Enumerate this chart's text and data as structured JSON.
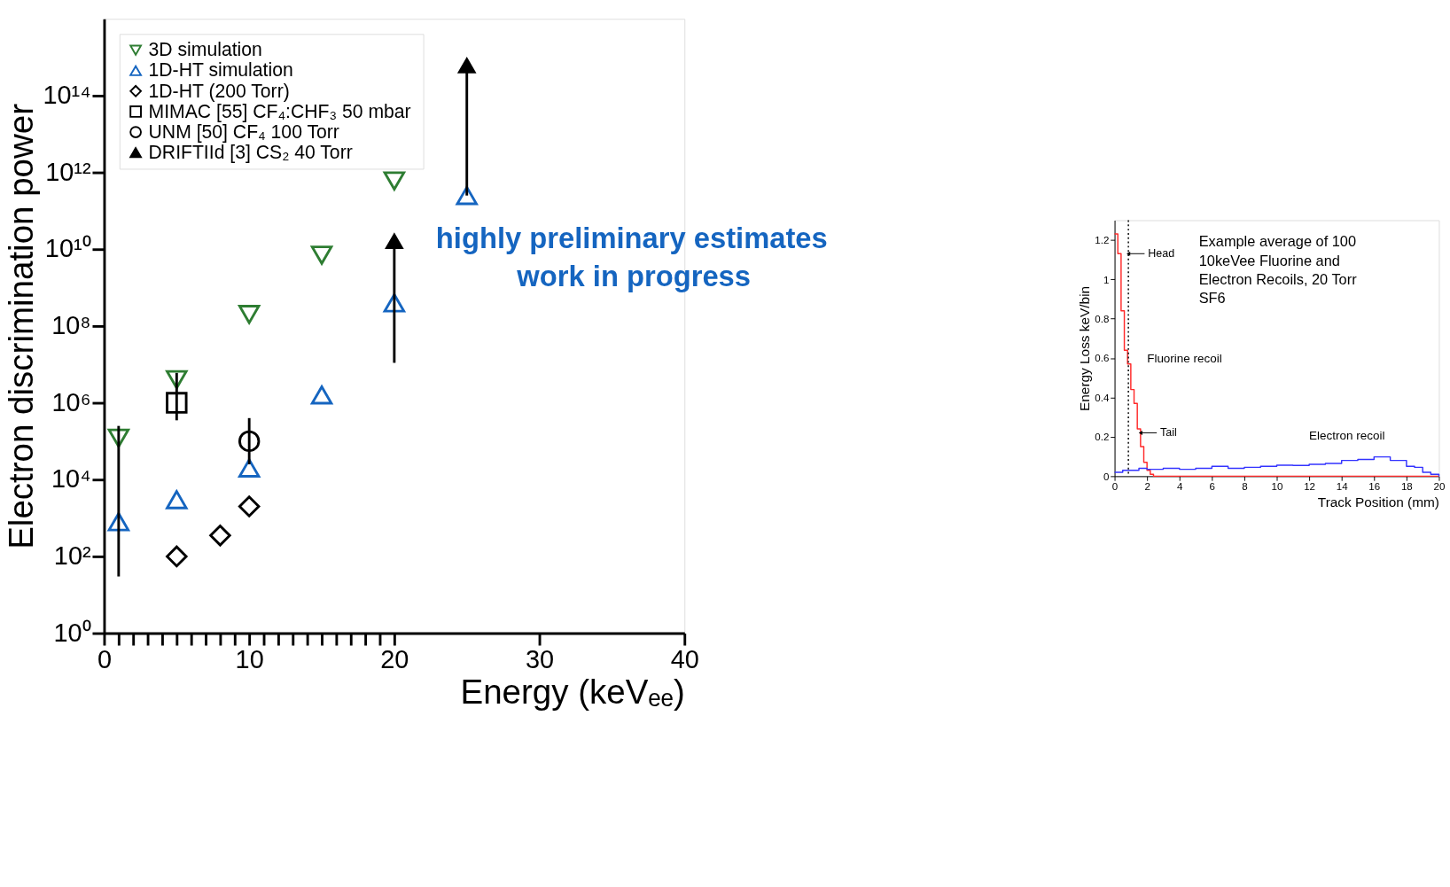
{
  "chart_data": [
    {
      "type": "scatter",
      "xlabel": "Energy (keVₑₑ)",
      "ylabel": "Electron discrimination power",
      "xlim": [
        0,
        40
      ],
      "xticks": [
        0,
        {
          "value": 1,
          "label": null
        },
        {
          "value": 2,
          "label": null
        },
        {
          "value": 3,
          "label": null
        },
        {
          "value": 4,
          "label": null
        },
        {
          "value": 5,
          "label": null
        },
        {
          "value": 6,
          "label": null
        },
        {
          "value": 7,
          "label": null
        },
        {
          "value": 8,
          "label": null
        },
        {
          "value": 9,
          "label": null
        },
        10,
        {
          "value": 11,
          "label": null
        },
        {
          "value": 12,
          "label": null
        },
        {
          "value": 13,
          "label": null
        },
        {
          "value": 14,
          "label": null
        },
        {
          "value": 15,
          "label": null
        },
        {
          "value": 16,
          "label": null
        },
        {
          "value": 17,
          "label": null
        },
        {
          "value": 18,
          "label": null
        },
        {
          "value": 19,
          "label": null
        },
        20,
        30,
        40
      ],
      "ylim": [
        1,
        1e+16
      ],
      "yticks": [
        {
          "value": 1,
          "label": "10⁰"
        },
        {
          "value": 100,
          "label": "10²"
        },
        {
          "value": 10000,
          "label": "10⁴"
        },
        {
          "value": 1000000,
          "label": "10⁶"
        },
        {
          "value": 100000000,
          "label": "10⁸"
        },
        {
          "value": 10000000000,
          "label": "10¹⁰"
        },
        {
          "value": 1000000000000,
          "label": "10¹²"
        },
        {
          "value": 100000000000000,
          "label": "10¹⁴"
        }
      ],
      "log": "y",
      "grid": false,
      "legend": "top left",
      "series": [
        {
          "name": "3D simulation",
          "color": "#2e7d32",
          "marker": "triangle-down",
          "x": [
            1,
            5,
            10,
            15,
            20
          ],
          "values": [
            120000,
            4000000,
            200000000,
            7000000000,
            600000000000
          ]
        },
        {
          "name": "1D-HT simulation",
          "color": "#1565c0",
          "marker": "triangle",
          "x": [
            1,
            5,
            10,
            15,
            20,
            25
          ],
          "values": [
            800,
            3000,
            20000,
            1600000,
            400000000,
            250000000000
          ]
        },
        {
          "name": "1D-HT (200 Torr)",
          "color": "#000000",
          "marker": "diamond",
          "x": [
            5,
            8,
            10
          ],
          "values": [
            100,
            350,
            2000
          ]
        },
        {
          "name": "MIMAC [55]  CF₄:CHF₃ 50 mbar",
          "color": "#000000",
          "marker": "square",
          "x": [
            5
          ],
          "values": [
            1000000
          ],
          "errors": [
            [
              350000,
              6000000
            ]
          ]
        },
        {
          "name": "UNM [50]  CF₄ 100 Torr",
          "color": "#000000",
          "marker": "circle",
          "x": [
            10
          ],
          "values": [
            100000
          ],
          "errors": [
            [
              25000,
              400000
            ]
          ]
        },
        {
          "name": "DRIFTIId [3]  CS₂ 40 Torr",
          "color": "#000000",
          "marker": "triangle",
          "x": [
            20,
            25
          ],
          "values": [
            16000000000,
            600000000000000
          ],
          "errors": [
            [
              11000000,
              16000000000
            ],
            [
              250000000000,
              600000000000000
            ]
          ]
        },
        {
          "type": "line",
          "color": "#000000",
          "marker": "none",
          "x": [
            1,
            1
          ],
          "values": [
            30,
            250000
          ]
        }
      ],
      "annotations": [
        "highly preliminary estimates",
        "work in progress"
      ]
    },
    {
      "type": "step",
      "xlabel": "Track Position (mm)",
      "ylabel": "Energy Loss keV/bin",
      "xlim": [
        0,
        20
      ],
      "xticks": [
        0,
        2,
        4,
        6,
        8,
        10,
        12,
        14,
        16,
        18,
        20
      ],
      "ylim": [
        0,
        1.3
      ],
      "yticks": [
        {
          "value": 0,
          "label": "0"
        },
        0.2,
        0.4,
        0.6,
        0.8,
        {
          "value": 1,
          "label": "1"
        },
        1.2
      ],
      "grid": false,
      "series": [
        {
          "color": "#ff2a2a",
          "x": [
            0,
            0.2,
            0.4,
            0.6,
            0.8,
            1.0,
            1.2,
            1.4,
            1.6,
            1.8,
            2.0,
            2.2,
            2.4,
            20
          ],
          "values": [
            1.23,
            1.13,
            0.84,
            0.64,
            0.57,
            0.44,
            0.37,
            0.24,
            0.15,
            0.07,
            0.03,
            0.01,
            0,
            0
          ]
        },
        {
          "color": "#3333ff",
          "x": [
            0,
            0.5,
            1,
            1.5,
            2,
            3,
            4,
            5,
            6,
            7,
            8,
            9,
            10,
            11,
            12,
            13,
            14,
            15,
            16,
            17,
            18,
            18.5,
            19,
            19.5,
            20
          ],
          "values": [
            0.02,
            0.03,
            0.03,
            0.04,
            0.035,
            0.04,
            0.035,
            0.04,
            0.05,
            0.04,
            0.045,
            0.05,
            0.056,
            0.055,
            0.06,
            0.065,
            0.08,
            0.085,
            0.098,
            0.08,
            0.05,
            0.045,
            0.02,
            0.01,
            0
          ]
        }
      ],
      "ref_lines": [
        {
          "axis": "x",
          "value": 0.85,
          "line_style": "dotted",
          "color": "#000000"
        }
      ],
      "annotations": [
        "Example average of 100 10keVee Fluorine and Electron Recoils, 20 Torr SF6",
        {
          "text": "Head",
          "x": 0.85,
          "y": 1.13
        },
        "Fluorine recoil",
        {
          "text": "Tail",
          "x": 1.6,
          "y": 0.22
        },
        "Electron recoil"
      ]
    }
  ]
}
